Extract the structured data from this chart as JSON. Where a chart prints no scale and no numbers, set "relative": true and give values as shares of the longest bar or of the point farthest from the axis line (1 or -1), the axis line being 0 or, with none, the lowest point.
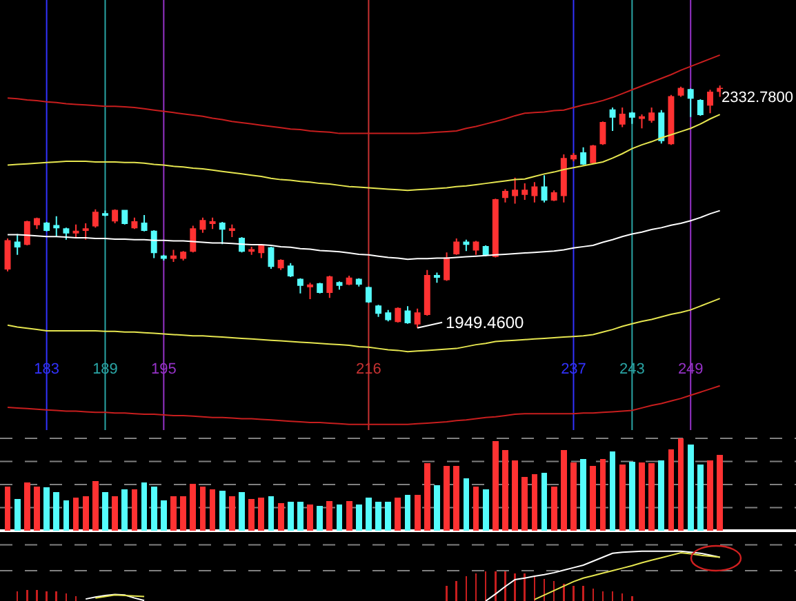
{
  "chart_data": [
    {
      "type": "candlestick",
      "categories": [
        null,
        null,
        null,
        null,
        "183",
        null,
        null,
        null,
        null,
        null,
        "189",
        null,
        null,
        null,
        null,
        null,
        "195",
        null,
        null,
        null,
        null,
        null,
        null,
        null,
        null,
        null,
        null,
        null,
        null,
        null,
        null,
        null,
        null,
        null,
        null,
        null,
        null,
        "216",
        null,
        null,
        null,
        null,
        null,
        null,
        null,
        null,
        null,
        null,
        null,
        null,
        null,
        null,
        null,
        null,
        null,
        null,
        null,
        null,
        "237",
        null,
        null,
        null,
        null,
        null,
        "243",
        null,
        null,
        null,
        null,
        null,
        "249",
        null,
        null,
        null
      ],
      "ohlc": [
        [
          2043,
          2091,
          2039,
          2087
        ],
        [
          2085,
          2098,
          2065,
          2078
        ],
        [
          2082,
          2119,
          2080,
          2117
        ],
        [
          2113,
          2124,
          2106,
          2122
        ],
        [
          2115,
          2117,
          2102,
          2104
        ],
        [
          2111,
          2126,
          2093,
          2108
        ],
        [
          2106,
          2108,
          2089,
          2100
        ],
        [
          2100,
          2113,
          2091,
          2102
        ],
        [
          2104,
          2115,
          2089,
          2106
        ],
        [
          2111,
          2137,
          2108,
          2132
        ],
        [
          2130,
          2135,
          2126,
          2128
        ],
        [
          2119,
          2137,
          2115,
          2135
        ],
        [
          2135,
          2136,
          2113,
          2115
        ],
        [
          2108,
          2124,
          2106,
          2117
        ],
        [
          2115,
          2128,
          2102,
          2104
        ],
        [
          2102,
          2104,
          2060,
          2069
        ],
        [
          2063,
          2065,
          2056,
          2060
        ],
        [
          2060,
          2073,
          2054,
          2063
        ],
        [
          2060,
          2071,
          2056,
          2069
        ],
        [
          2071,
          2111,
          2069,
          2106
        ],
        [
          2106,
          2124,
          2100,
          2119
        ],
        [
          2115,
          2124,
          2106,
          2117
        ],
        [
          2115,
          2117,
          2082,
          2106
        ],
        [
          2104,
          2113,
          2093,
          2106
        ],
        [
          2091,
          2093,
          2069,
          2071
        ],
        [
          2071,
          2078,
          2065,
          2073
        ],
        [
          2069,
          2082,
          2060,
          2080
        ],
        [
          2076,
          2078,
          2043,
          2047
        ],
        [
          2045,
          2058,
          2041,
          2056
        ],
        [
          2047,
          2052,
          2030,
          2032
        ],
        [
          2026,
          2028,
          2004,
          2017
        ],
        [
          2015,
          2021,
          1995,
          2017
        ],
        [
          2019,
          2021,
          2004,
          2006
        ],
        [
          2006,
          2032,
          1997,
          2030
        ],
        [
          2021,
          2023,
          2010,
          2017
        ],
        [
          2019,
          2032,
          2017,
          2028
        ],
        [
          2026,
          2028,
          2015,
          2019
        ],
        [
          2013,
          2015,
          1989,
          1991
        ],
        [
          1984,
          1986,
          1967,
          1973
        ],
        [
          1973,
          1978,
          1960,
          1963
        ],
        [
          1960,
          1982,
          1958,
          1980
        ],
        [
          1976,
          1984,
          1956,
          1958
        ],
        [
          1956,
          1980,
          1949.46,
          1973
        ],
        [
          1971,
          2041,
          1969,
          2032
        ],
        [
          2032,
          2037,
          2021,
          2030
        ],
        [
          2026,
          2069,
          2024,
          2060
        ],
        [
          2067,
          2091,
          2065,
          2085
        ],
        [
          2085,
          2089,
          2071,
          2082
        ],
        [
          2073,
          2087,
          2065,
          2085
        ],
        [
          2078,
          2080,
          2063,
          2065
        ],
        [
          2063,
          2154,
          2061,
          2152
        ],
        [
          2156,
          2169,
          2148,
          2165
        ],
        [
          2159,
          2187,
          2146,
          2167
        ],
        [
          2161,
          2178,
          2152,
          2167
        ],
        [
          2159,
          2180,
          2148,
          2172
        ],
        [
          2172,
          2191,
          2148,
          2152
        ],
        [
          2152,
          2167,
          2150,
          2163
        ],
        [
          2159,
          2224,
          2148,
          2217
        ],
        [
          2217,
          2226,
          2213,
          2222
        ],
        [
          2226,
          2235,
          2207,
          2209
        ],
        [
          2211,
          2239,
          2209,
          2237
        ],
        [
          2241,
          2276,
          2239,
          2274
        ],
        [
          2294,
          2298,
          2261,
          2283
        ],
        [
          2272,
          2298,
          2267,
          2287
        ],
        [
          2289,
          2291,
          2272,
          2283
        ],
        [
          2281,
          2287,
          2265,
          2283
        ],
        [
          2278,
          2298,
          2274,
          2289
        ],
        [
          2289,
          2294,
          2241,
          2246
        ],
        [
          2241,
          2318,
          2239,
          2315
        ],
        [
          2318,
          2331,
          2315,
          2328
        ],
        [
          2326,
          2328,
          2283,
          2313
        ],
        [
          2309,
          2311,
          2285,
          2287
        ],
        [
          2302,
          2326,
          2289,
          2322
        ],
        [
          2324,
          2332.78,
          2315,
          2328
        ]
      ],
      "colors": [
        "#ff3232",
        "#54fcfc",
        "#ff3232",
        "#ff3232",
        "#54fcfc",
        "#54fcfc",
        "#54fcfc",
        "#ff3232",
        "#ff3232",
        "#ff3232",
        "#54fcfc",
        "#ff3232",
        "#54fcfc",
        "#ff3232",
        "#54fcfc",
        "#54fcfc",
        "#54fcfc",
        "#ff3232",
        "#ff3232",
        "#ff3232",
        "#ff3232",
        "#ff3232",
        "#54fcfc",
        "#ff3232",
        "#54fcfc",
        "#ff3232",
        "#ff3232",
        "#54fcfc",
        "#ff3232",
        "#54fcfc",
        "#54fcfc",
        "#ff3232",
        "#54fcfc",
        "#ff3232",
        "#54fcfc",
        "#ff3232",
        "#54fcfc",
        "#54fcfc",
        "#54fcfc",
        "#54fcfc",
        "#ff3232",
        "#54fcfc",
        "#ff3232",
        "#ff3232",
        "#54fcfc",
        "#ff3232",
        "#ff3232",
        "#54fcfc",
        "#ff3232",
        "#54fcfc",
        "#ff3232",
        "#ff3232",
        "#ff3232",
        "#ff3232",
        "#ff3232",
        "#54fcfc",
        "#ff3232",
        "#ff3232",
        "#ff3232",
        "#54fcfc",
        "#ff3232",
        "#ff3232",
        "#54fcfc",
        "#ff3232",
        "#54fcfc",
        "#ff3232",
        "#ff3232",
        "#54fcfc",
        "#ff3232",
        "#ff3232",
        "#54fcfc",
        "#54fcfc",
        "#ff3232",
        "#ff3232"
      ],
      "series": [
        {
          "type": "line",
          "color": "#c81e1e",
          "values": [
            2313,
            2312,
            2310,
            2309,
            2307,
            2306,
            2304,
            2303,
            2302,
            2301,
            2300,
            2300,
            2299,
            2298,
            2296,
            2294,
            2292,
            2290,
            2288,
            2286,
            2284,
            2281,
            2279,
            2276,
            2274,
            2272,
            2270,
            2268,
            2266,
            2264,
            2263,
            2261,
            2260,
            2259,
            2257,
            2257,
            2257,
            2257,
            2257,
            2257,
            2257,
            2257,
            2257,
            2258,
            2259,
            2260,
            2261,
            2265,
            2268,
            2272,
            2276,
            2280,
            2285,
            2289,
            2290,
            2291,
            2293,
            2294,
            2298,
            2302,
            2305,
            2309,
            2314,
            2320,
            2326,
            2332,
            2338,
            2344,
            2350,
            2357,
            2363,
            2369,
            2375,
            2381
          ]
        },
        {
          "type": "line",
          "color": "#e6e650",
          "values": [
            2207,
            2208,
            2209,
            2210,
            2211,
            2212,
            2213,
            2213,
            2213,
            2212,
            2212,
            2212,
            2211,
            2211,
            2210,
            2208,
            2207,
            2205,
            2204,
            2202,
            2201,
            2199,
            2197,
            2195,
            2193,
            2191,
            2189,
            2186,
            2184,
            2183,
            2181,
            2180,
            2178,
            2177,
            2175,
            2173,
            2172,
            2171,
            2170,
            2169,
            2168,
            2167,
            2168,
            2169,
            2170,
            2171,
            2173,
            2174,
            2176,
            2178,
            2180,
            2182,
            2184,
            2185,
            2189,
            2193,
            2196,
            2200,
            2203,
            2206,
            2209,
            2212,
            2218,
            2225,
            2233,
            2239,
            2244,
            2250,
            2255,
            2260,
            2265,
            2272,
            2280,
            2287
          ]
        },
        {
          "type": "line",
          "color": "#ffffff",
          "values": [
            2097,
            2097,
            2096,
            2095,
            2094,
            2094,
            2093,
            2092,
            2092,
            2091,
            2091,
            2090,
            2090,
            2089,
            2089,
            2088,
            2088,
            2087,
            2087,
            2086,
            2085,
            2084,
            2084,
            2083,
            2082,
            2081,
            2081,
            2080,
            2078,
            2077,
            2075,
            2074,
            2072,
            2071,
            2070,
            2068,
            2066,
            2065,
            2063,
            2061,
            2060,
            2058,
            2059,
            2059,
            2060,
            2060,
            2061,
            2062,
            2063,
            2064,
            2065,
            2066,
            2067,
            2068,
            2069,
            2070,
            2071,
            2073,
            2076,
            2078,
            2080,
            2085,
            2089,
            2094,
            2098,
            2101,
            2105,
            2108,
            2112,
            2115,
            2119,
            2124,
            2130,
            2135
          ]
        },
        {
          "type": "line",
          "color": "#e6e650",
          "values": [
            1954,
            1951,
            1949,
            1947,
            1945,
            1945,
            1945,
            1945,
            1945,
            1945,
            1944,
            1944,
            1943,
            1943,
            1942,
            1941,
            1940,
            1939,
            1938,
            1937,
            1937,
            1936,
            1935,
            1934,
            1933,
            1932,
            1931,
            1930,
            1929,
            1928,
            1927,
            1926,
            1925,
            1924,
            1923,
            1922,
            1920,
            1919,
            1917,
            1915,
            1914,
            1912,
            1913,
            1914,
            1915,
            1916,
            1917,
            1920,
            1923,
            1925,
            1928,
            1929,
            1930,
            1931,
            1932,
            1933,
            1934,
            1935,
            1936,
            1937,
            1939,
            1943,
            1947,
            1952,
            1956,
            1960,
            1963,
            1967,
            1971,
            1974,
            1978,
            1984,
            1990,
            1996
          ]
        },
        {
          "type": "line",
          "color": "#c81e1e",
          "values": [
            1824,
            1823,
            1822,
            1821,
            1820,
            1819,
            1818,
            1818,
            1817,
            1816,
            1816,
            1815,
            1815,
            1814,
            1813,
            1813,
            1812,
            1811,
            1811,
            1810,
            1809,
            1808,
            1808,
            1807,
            1806,
            1806,
            1805,
            1804,
            1803,
            1802,
            1801,
            1800,
            1800,
            1799,
            1798,
            1797,
            1797,
            1797,
            1797,
            1797,
            1797,
            1797,
            1798,
            1799,
            1800,
            1801,
            1803,
            1804,
            1806,
            1808,
            1809,
            1811,
            1813,
            1814,
            1814,
            1814,
            1814,
            1814,
            1814,
            1815,
            1815,
            1816,
            1817,
            1818,
            1819,
            1823,
            1827,
            1830,
            1834,
            1838,
            1843,
            1848,
            1853,
            1858
          ]
        }
      ],
      "ylim": [
        1788,
        2468
      ],
      "tick_labels": "x",
      "ref_lines": [
        {
          "axis": "x",
          "value": "183",
          "color": "#3232ff"
        },
        {
          "axis": "x",
          "value": "189",
          "color": "#2aa5a5"
        },
        {
          "axis": "x",
          "value": "195",
          "color": "#9632c8"
        },
        {
          "axis": "x",
          "value": "216",
          "color": "#c83232"
        },
        {
          "axis": "x",
          "value": "237",
          "color": "#3232ff"
        },
        {
          "axis": "x",
          "value": "243",
          "color": "#2aa5a5"
        },
        {
          "axis": "x",
          "value": "249",
          "color": "#9632c8"
        }
      ],
      "annotations": [
        "2332.7800",
        "1949.4600"
      ]
    },
    {
      "type": "bar",
      "relative": true,
      "categories": [
        null,
        null,
        null,
        null,
        null,
        null,
        null,
        null,
        null,
        null,
        null,
        null,
        null,
        null,
        null,
        null,
        null,
        null,
        null,
        null,
        null,
        null,
        null,
        null,
        null,
        null,
        null,
        null,
        null,
        null,
        null,
        null,
        null,
        null,
        null,
        null,
        null,
        null,
        null,
        null,
        null,
        null,
        null,
        null,
        null,
        null,
        null,
        null,
        null,
        null,
        null,
        null,
        null,
        null,
        null,
        null,
        null,
        null,
        null,
        null,
        null,
        null,
        null,
        null,
        null,
        null,
        null,
        null,
        null,
        null,
        null,
        null,
        null,
        null
      ],
      "values": [
        0.48,
        0.34,
        0.52,
        0.48,
        0.47,
        0.42,
        0.33,
        0.36,
        0.37,
        0.54,
        0.42,
        0.37,
        0.45,
        0.45,
        0.52,
        0.48,
        0.33,
        0.37,
        0.37,
        0.51,
        0.48,
        0.45,
        0.43,
        0.37,
        0.42,
        0.34,
        0.36,
        0.37,
        0.3,
        0.31,
        0.31,
        0.28,
        0.27,
        0.32,
        0.28,
        0.32,
        0.28,
        0.36,
        0.31,
        0.31,
        0.36,
        0.39,
        0.39,
        0.73,
        0.49,
        0.7,
        0.7,
        0.57,
        0.48,
        0.45,
        0.97,
        0.87,
        0.76,
        0.58,
        0.61,
        0.63,
        0.48,
        0.87,
        0.74,
        0.78,
        0.7,
        0.78,
        0.86,
        0.72,
        0.75,
        0.74,
        0.73,
        0.76,
        0.88,
        1,
        0.93,
        0.72,
        0.76,
        0.82
      ],
      "colors": [
        "#ff3232",
        "#54fcfc",
        "#ff3232",
        "#ff3232",
        "#54fcfc",
        "#54fcfc",
        "#54fcfc",
        "#ff3232",
        "#ff3232",
        "#ff3232",
        "#54fcfc",
        "#ff3232",
        "#54fcfc",
        "#ff3232",
        "#54fcfc",
        "#54fcfc",
        "#54fcfc",
        "#ff3232",
        "#ff3232",
        "#ff3232",
        "#ff3232",
        "#ff3232",
        "#54fcfc",
        "#ff3232",
        "#54fcfc",
        "#ff3232",
        "#ff3232",
        "#54fcfc",
        "#ff3232",
        "#54fcfc",
        "#54fcfc",
        "#ff3232",
        "#54fcfc",
        "#ff3232",
        "#54fcfc",
        "#ff3232",
        "#54fcfc",
        "#54fcfc",
        "#54fcfc",
        "#54fcfc",
        "#ff3232",
        "#54fcfc",
        "#ff3232",
        "#ff3232",
        "#54fcfc",
        "#ff3232",
        "#ff3232",
        "#54fcfc",
        "#ff3232",
        "#54fcfc",
        "#ff3232",
        "#ff3232",
        "#ff3232",
        "#ff3232",
        "#ff3232",
        "#54fcfc",
        "#ff3232",
        "#ff3232",
        "#ff3232",
        "#54fcfc",
        "#ff3232",
        "#ff3232",
        "#54fcfc",
        "#ff3232",
        "#54fcfc",
        "#ff3232",
        "#ff3232",
        "#54fcfc",
        "#ff3232",
        "#ff3232",
        "#54fcfc",
        "#54fcfc",
        "#ff3232",
        "#ff3232"
      ],
      "tick_labels": false,
      "ref_lines": [
        {
          "axis": "y",
          "value": 0.25,
          "color": "#808080",
          "line_style": "dashed"
        },
        {
          "axis": "y",
          "value": 0.5,
          "color": "#808080",
          "line_style": "dashed"
        },
        {
          "axis": "y",
          "value": 0.75,
          "color": "#808080",
          "line_style": "dashed"
        },
        {
          "axis": "y",
          "value": 1,
          "color": "#808080",
          "line_style": "dashed"
        }
      ]
    },
    {
      "type": "line",
      "relative": true,
      "tick_labels": false,
      "categories": [
        null,
        null,
        null,
        null,
        null,
        null,
        null,
        null,
        null,
        null,
        null,
        null,
        null,
        null,
        null,
        null,
        null,
        null,
        null,
        null,
        null,
        null,
        null,
        null,
        null,
        null,
        null,
        null,
        null,
        null,
        null,
        null,
        null,
        null,
        null,
        null,
        null,
        null,
        null,
        null,
        null,
        null,
        null,
        null,
        null,
        null,
        null,
        null,
        null,
        null,
        null,
        null,
        null,
        null,
        null,
        null,
        null,
        null,
        null,
        null,
        null,
        null,
        null,
        null,
        null,
        null,
        null,
        null,
        null,
        null,
        null,
        null,
        null,
        null
      ],
      "series": [
        {
          "type": "bar",
          "color": "#c81e1e",
          "values": [
            null,
            0.2,
            0.22,
            0.22,
            0.2,
            0.2,
            0.15,
            0.1,
            null,
            null,
            null,
            null,
            null,
            null,
            null,
            null,
            null,
            null,
            null,
            null,
            null,
            null,
            null,
            null,
            null,
            null,
            null,
            null,
            null,
            null,
            null,
            null,
            null,
            null,
            null,
            null,
            null,
            null,
            null,
            null,
            null,
            null,
            null,
            null,
            null,
            0.3,
            0.4,
            0.5,
            0.55,
            0.6,
            0.6,
            0.6,
            0.55,
            0.55,
            0.5,
            0.45,
            0.4,
            0.35,
            0.3,
            0.3,
            0.25,
            0.2,
            0.2,
            0.15,
            0.1,
            null,
            null,
            null,
            null,
            null,
            null,
            null,
            null,
            null
          ]
        },
        {
          "color": "#ffffff",
          "values": [
            null,
            null,
            null,
            null,
            null,
            null,
            null,
            null,
            0.04,
            0.08,
            0.11,
            0.13,
            0.12,
            0.06,
            0.01,
            null,
            null,
            null,
            null,
            null,
            null,
            null,
            null,
            null,
            null,
            null,
            null,
            null,
            null,
            null,
            null,
            null,
            null,
            null,
            null,
            null,
            null,
            null,
            null,
            null,
            null,
            null,
            null,
            null,
            null,
            null,
            null,
            null,
            null,
            0,
            0.14,
            0.29,
            0.43,
            0.46,
            0.5,
            0.53,
            0.57,
            0.62,
            0.67,
            0.72,
            0.8,
            0.88,
            0.96,
            0.98,
            0.99,
            1,
            1,
            1,
            1,
            1,
            0.98,
            0.96,
            0.92,
            0.88
          ]
        },
        {
          "color": "#e6e650",
          "values": [
            null,
            null,
            null,
            null,
            null,
            null,
            null,
            null,
            null,
            0.06,
            0.09,
            0.12,
            0.11,
            0.1,
            0.09,
            null,
            null,
            null,
            null,
            null,
            null,
            null,
            null,
            null,
            null,
            null,
            null,
            null,
            null,
            null,
            null,
            null,
            null,
            null,
            null,
            null,
            null,
            null,
            null,
            null,
            null,
            null,
            null,
            null,
            null,
            null,
            null,
            null,
            null,
            null,
            null,
            null,
            null,
            null,
            0.03,
            0.12,
            0.21,
            0.3,
            0.39,
            0.46,
            0.51,
            0.56,
            0.61,
            0.66,
            0.71,
            0.77,
            0.82,
            0.87,
            0.92,
            0.97,
            0.95,
            0.92,
            0.9,
            0.88
          ]
        }
      ],
      "ref_lines": [
        {
          "axis": "y",
          "value": 1.13,
          "color": "#808080",
          "line_style": "dashed"
        },
        {
          "axis": "y",
          "value": 0.61,
          "color": "#808080",
          "line_style": "dashed"
        }
      ]
    }
  ]
}
